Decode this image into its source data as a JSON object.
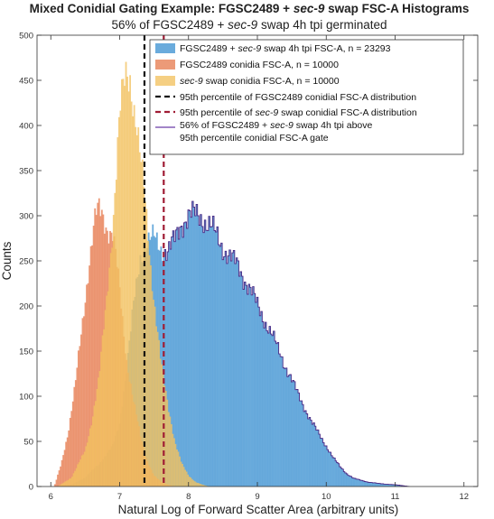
{
  "chart_data": {
    "type": "histogram",
    "title_parts": [
      {
        "text": "Mixed Conidial Gating Example: FGSC2489 + ",
        "italic": false
      },
      {
        "text": "sec-9",
        "italic": true
      },
      {
        "text": " swap FSC-A Histograms",
        "italic": false
      }
    ],
    "subtitle_parts": [
      {
        "text": "56% of FGSC2489 + ",
        "italic": false
      },
      {
        "text": "sec-9",
        "italic": true
      },
      {
        "text": " swap 4h tpi germinated",
        "italic": false
      }
    ],
    "xlabel": "Natural Log of Forward Scatter Area (arbitrary units)",
    "ylabel": "Counts",
    "xlim": [
      5.8,
      12.2
    ],
    "ylim": [
      0,
      500
    ],
    "xticks": [
      "6",
      "7",
      "8",
      "9",
      "10",
      "11",
      "12"
    ],
    "xtick_values": [
      6,
      7,
      8,
      9,
      10,
      11,
      12
    ],
    "yticks": [
      "0",
      "50",
      "100",
      "150",
      "200",
      "250",
      "300",
      "350",
      "400",
      "450",
      "500"
    ],
    "ytick_values": [
      0,
      50,
      100,
      150,
      200,
      250,
      300,
      350,
      400,
      450,
      500
    ],
    "bin_width": 0.02,
    "series": [
      {
        "key": "swap4h",
        "color": "#5aa2d8",
        "edge": "#4b2a86",
        "opacity": 0.9,
        "legend_parts": [
          {
            "text": "FGSC2489 + ",
            "italic": false
          },
          {
            "text": "sec-9",
            "italic": true
          },
          {
            "text": " swap 4h tpi FSC-A, n = 23293",
            "italic": false
          }
        ],
        "profile": [
          [
            6.05,
            0
          ],
          [
            6.3,
            2
          ],
          [
            6.5,
            10
          ],
          [
            6.7,
            25
          ],
          [
            6.9,
            45
          ],
          [
            7.0,
            70
          ],
          [
            7.1,
            130
          ],
          [
            7.2,
            200
          ],
          [
            7.3,
            255
          ],
          [
            7.4,
            270
          ],
          [
            7.5,
            275
          ],
          [
            7.6,
            265
          ],
          [
            7.7,
            260
          ],
          [
            7.8,
            272
          ],
          [
            7.9,
            292
          ],
          [
            8.0,
            300
          ],
          [
            8.1,
            300
          ],
          [
            8.2,
            298
          ],
          [
            8.3,
            290
          ],
          [
            8.4,
            278
          ],
          [
            8.5,
            265
          ],
          [
            8.6,
            255
          ],
          [
            8.7,
            245
          ],
          [
            8.8,
            232
          ],
          [
            8.9,
            218
          ],
          [
            9.0,
            200
          ],
          [
            9.1,
            185
          ],
          [
            9.2,
            170
          ],
          [
            9.3,
            152
          ],
          [
            9.4,
            135
          ],
          [
            9.5,
            118
          ],
          [
            9.6,
            100
          ],
          [
            9.7,
            85
          ],
          [
            9.8,
            70
          ],
          [
            9.9,
            57
          ],
          [
            10.0,
            45
          ],
          [
            10.1,
            32
          ],
          [
            10.2,
            22
          ],
          [
            10.3,
            14
          ],
          [
            10.4,
            9
          ],
          [
            10.6,
            5
          ],
          [
            10.8,
            3
          ],
          [
            11.0,
            2
          ],
          [
            11.2,
            0
          ]
        ]
      },
      {
        "key": "fgsc",
        "color": "#e8845a",
        "edge": "none",
        "opacity": 0.82,
        "legend_parts": [
          {
            "text": "FGSC2489 conidia FSC-A, n = 10000",
            "italic": false
          }
        ],
        "profile": [
          [
            6.05,
            0
          ],
          [
            6.15,
            25
          ],
          [
            6.25,
            60
          ],
          [
            6.35,
            110
          ],
          [
            6.45,
            175
          ],
          [
            6.55,
            245
          ],
          [
            6.6,
            275
          ],
          [
            6.65,
            300
          ],
          [
            6.7,
            305
          ],
          [
            6.75,
            300
          ],
          [
            6.8,
            290
          ],
          [
            6.85,
            285
          ],
          [
            6.9,
            280
          ],
          [
            6.95,
            250
          ],
          [
            7.0,
            215
          ],
          [
            7.05,
            175
          ],
          [
            7.1,
            140
          ],
          [
            7.2,
            95
          ],
          [
            7.3,
            55
          ],
          [
            7.4,
            28
          ],
          [
            7.5,
            12
          ],
          [
            7.6,
            5
          ],
          [
            7.7,
            2
          ],
          [
            7.8,
            0
          ]
        ]
      },
      {
        "key": "sec9",
        "color": "#f2c160",
        "edge": "none",
        "opacity": 0.78,
        "legend_parts": [
          {
            "text": "sec-9",
            "italic": true
          },
          {
            "text": " swap conidia FSC-A, n = 10000",
            "italic": false
          }
        ],
        "profile": [
          [
            6.1,
            0
          ],
          [
            6.3,
            10
          ],
          [
            6.5,
            40
          ],
          [
            6.6,
            75
          ],
          [
            6.7,
            120
          ],
          [
            6.8,
            200
          ],
          [
            6.9,
            290
          ],
          [
            6.95,
            350
          ],
          [
            7.0,
            410
          ],
          [
            7.05,
            440
          ],
          [
            7.1,
            460
          ],
          [
            7.15,
            455
          ],
          [
            7.2,
            425
          ],
          [
            7.25,
            395
          ],
          [
            7.3,
            360
          ],
          [
            7.35,
            330
          ],
          [
            7.4,
            290
          ],
          [
            7.45,
            245
          ],
          [
            7.5,
            205
          ],
          [
            7.55,
            170
          ],
          [
            7.6,
            135
          ],
          [
            7.7,
            90
          ],
          [
            7.8,
            50
          ],
          [
            7.9,
            25
          ],
          [
            8.0,
            12
          ],
          [
            8.1,
            5
          ],
          [
            8.2,
            2
          ],
          [
            8.3,
            0
          ]
        ]
      }
    ],
    "vlines": [
      {
        "x": 7.36,
        "color": "#111111",
        "legend_parts": [
          {
            "text": "95th percentile of FGSC2489 conidial FSC-A distribution",
            "italic": false
          }
        ]
      },
      {
        "x": 7.64,
        "color": "#a01c34",
        "legend_parts": [
          {
            "text": "95th percentile of ",
            "italic": false
          },
          {
            "text": "sec-9",
            "italic": true
          },
          {
            "text": " swap conidial FSC-A distribution",
            "italic": false
          }
        ]
      }
    ],
    "outline_legend": {
      "color": "#6a3ca8",
      "line1_parts": [
        {
          "text": "56% of FGSC2489 + ",
          "italic": false
        },
        {
          "text": "sec-9",
          "italic": true
        },
        {
          "text": " swap 4h tpi above",
          "italic": false
        }
      ],
      "line2_parts": [
        {
          "text": "95th percentile conidial FSC-A gate",
          "italic": false
        }
      ]
    },
    "legend_position": "top-right",
    "grid": false
  }
}
